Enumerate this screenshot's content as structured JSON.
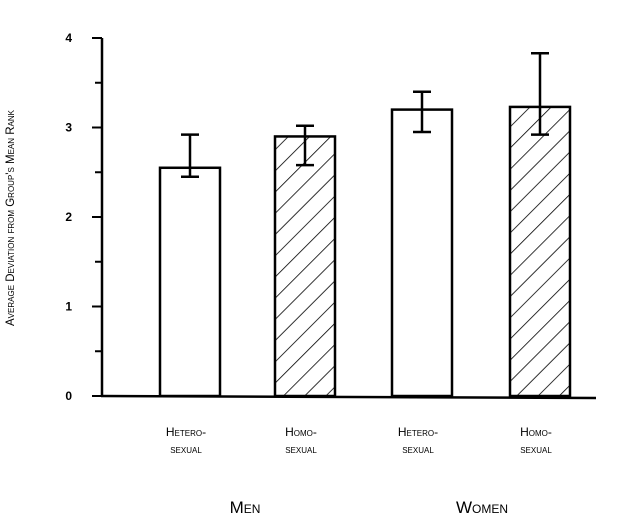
{
  "chart_data": {
    "type": "bar",
    "title": "",
    "xlabel": "",
    "ylabel": "Average Deviation from Group's Mean Rank",
    "ylim": [
      0,
      4
    ],
    "yticks": [
      0,
      1,
      2,
      3,
      4
    ],
    "y_minor_step": 0.5,
    "grid": false,
    "legend": "none",
    "groups": [
      "Men",
      "Women"
    ],
    "categories": [
      "Hetero-sexual",
      "Homo-sexual",
      "Hetero-sexual",
      "Homo-sexual"
    ],
    "category_lines": [
      [
        "Hetero-",
        "sexual"
      ],
      [
        "Homo-",
        "sexual"
      ],
      [
        "Hetero-",
        "sexual"
      ],
      [
        "Homo-",
        "sexual"
      ]
    ],
    "category_group": [
      0,
      0,
      1,
      1
    ],
    "values": [
      2.55,
      2.9,
      3.2,
      3.23
    ],
    "error_low": [
      2.45,
      2.58,
      2.95,
      2.92
    ],
    "error_high": [
      2.92,
      3.02,
      3.4,
      3.83
    ],
    "fill": [
      "plain",
      "hatched",
      "plain",
      "hatched"
    ],
    "colors": {
      "bar_stroke": "#000000",
      "bar_fill": "#ffffff",
      "hatch": "#000000"
    }
  }
}
